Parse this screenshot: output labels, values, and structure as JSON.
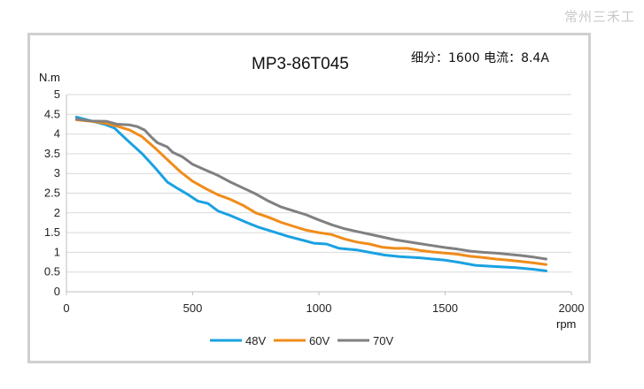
{
  "watermark": "常州三禾工",
  "chart_data": {
    "type": "line",
    "title": "MP3-86T045",
    "subtitle": "细分：1600 电流：8.4A",
    "xlabel": "rpm",
    "ylabel": "N.m",
    "xlim": [
      0,
      2000
    ],
    "ylim": [
      0,
      5
    ],
    "x_ticks": [
      0,
      500,
      1000,
      1500,
      2000
    ],
    "y_ticks": [
      0,
      0.5,
      1,
      1.5,
      2,
      2.5,
      3,
      3.5,
      4,
      4.5,
      5
    ],
    "y_tick_labels": [
      "0",
      "0.5",
      "1",
      "1.5",
      "2",
      "2.5",
      "3",
      "3.5",
      "4",
      "4.5",
      "5"
    ],
    "grid": "horizontal",
    "legend_position": "bottom",
    "series": [
      {
        "name": "48V",
        "color": "#1ba1e2",
        "points": [
          [
            40,
            4.43
          ],
          [
            100,
            4.33
          ],
          [
            150,
            4.25
          ],
          [
            190,
            4.15
          ],
          [
            240,
            3.85
          ],
          [
            300,
            3.5
          ],
          [
            350,
            3.15
          ],
          [
            400,
            2.78
          ],
          [
            440,
            2.62
          ],
          [
            480,
            2.47
          ],
          [
            520,
            2.3
          ],
          [
            560,
            2.24
          ],
          [
            600,
            2.05
          ],
          [
            650,
            1.93
          ],
          [
            680,
            1.85
          ],
          [
            720,
            1.74
          ],
          [
            760,
            1.64
          ],
          [
            820,
            1.52
          ],
          [
            880,
            1.4
          ],
          [
            940,
            1.3
          ],
          [
            980,
            1.23
          ],
          [
            1030,
            1.21
          ],
          [
            1080,
            1.1
          ],
          [
            1150,
            1.06
          ],
          [
            1200,
            1.0
          ],
          [
            1260,
            0.93
          ],
          [
            1320,
            0.89
          ],
          [
            1400,
            0.86
          ],
          [
            1450,
            0.83
          ],
          [
            1500,
            0.8
          ],
          [
            1560,
            0.74
          ],
          [
            1620,
            0.67
          ],
          [
            1700,
            0.64
          ],
          [
            1780,
            0.61
          ],
          [
            1850,
            0.57
          ],
          [
            1900,
            0.53
          ]
        ]
      },
      {
        "name": "60V",
        "color": "#f08c1a",
        "points": [
          [
            40,
            4.36
          ],
          [
            100,
            4.32
          ],
          [
            150,
            4.28
          ],
          [
            200,
            4.2
          ],
          [
            250,
            4.1
          ],
          [
            300,
            3.93
          ],
          [
            350,
            3.65
          ],
          [
            400,
            3.35
          ],
          [
            450,
            3.05
          ],
          [
            500,
            2.8
          ],
          [
            550,
            2.62
          ],
          [
            600,
            2.46
          ],
          [
            650,
            2.34
          ],
          [
            700,
            2.19
          ],
          [
            750,
            2.0
          ],
          [
            800,
            1.89
          ],
          [
            850,
            1.76
          ],
          [
            900,
            1.66
          ],
          [
            950,
            1.56
          ],
          [
            1000,
            1.5
          ],
          [
            1050,
            1.45
          ],
          [
            1100,
            1.34
          ],
          [
            1150,
            1.26
          ],
          [
            1200,
            1.21
          ],
          [
            1250,
            1.13
          ],
          [
            1300,
            1.1
          ],
          [
            1350,
            1.1
          ],
          [
            1400,
            1.05
          ],
          [
            1450,
            1.01
          ],
          [
            1500,
            0.98
          ],
          [
            1550,
            0.95
          ],
          [
            1600,
            0.9
          ],
          [
            1650,
            0.87
          ],
          [
            1700,
            0.83
          ],
          [
            1750,
            0.8
          ],
          [
            1800,
            0.77
          ],
          [
            1850,
            0.73
          ],
          [
            1900,
            0.69
          ]
        ]
      },
      {
        "name": "70V",
        "color": "#808080",
        "points": [
          [
            40,
            4.38
          ],
          [
            100,
            4.33
          ],
          [
            160,
            4.32
          ],
          [
            200,
            4.25
          ],
          [
            250,
            4.23
          ],
          [
            280,
            4.19
          ],
          [
            310,
            4.1
          ],
          [
            340,
            3.9
          ],
          [
            360,
            3.78
          ],
          [
            400,
            3.67
          ],
          [
            420,
            3.54
          ],
          [
            460,
            3.42
          ],
          [
            500,
            3.23
          ],
          [
            550,
            3.09
          ],
          [
            600,
            2.95
          ],
          [
            650,
            2.78
          ],
          [
            700,
            2.63
          ],
          [
            750,
            2.48
          ],
          [
            800,
            2.3
          ],
          [
            850,
            2.15
          ],
          [
            900,
            2.05
          ],
          [
            950,
            1.95
          ],
          [
            1000,
            1.82
          ],
          [
            1050,
            1.7
          ],
          [
            1100,
            1.6
          ],
          [
            1150,
            1.53
          ],
          [
            1200,
            1.46
          ],
          [
            1250,
            1.39
          ],
          [
            1300,
            1.32
          ],
          [
            1350,
            1.27
          ],
          [
            1400,
            1.22
          ],
          [
            1450,
            1.17
          ],
          [
            1500,
            1.12
          ],
          [
            1550,
            1.08
          ],
          [
            1600,
            1.03
          ],
          [
            1650,
            1.0
          ],
          [
            1700,
            0.98
          ],
          [
            1750,
            0.95
          ],
          [
            1800,
            0.92
          ],
          [
            1850,
            0.88
          ],
          [
            1900,
            0.83
          ]
        ]
      }
    ]
  }
}
